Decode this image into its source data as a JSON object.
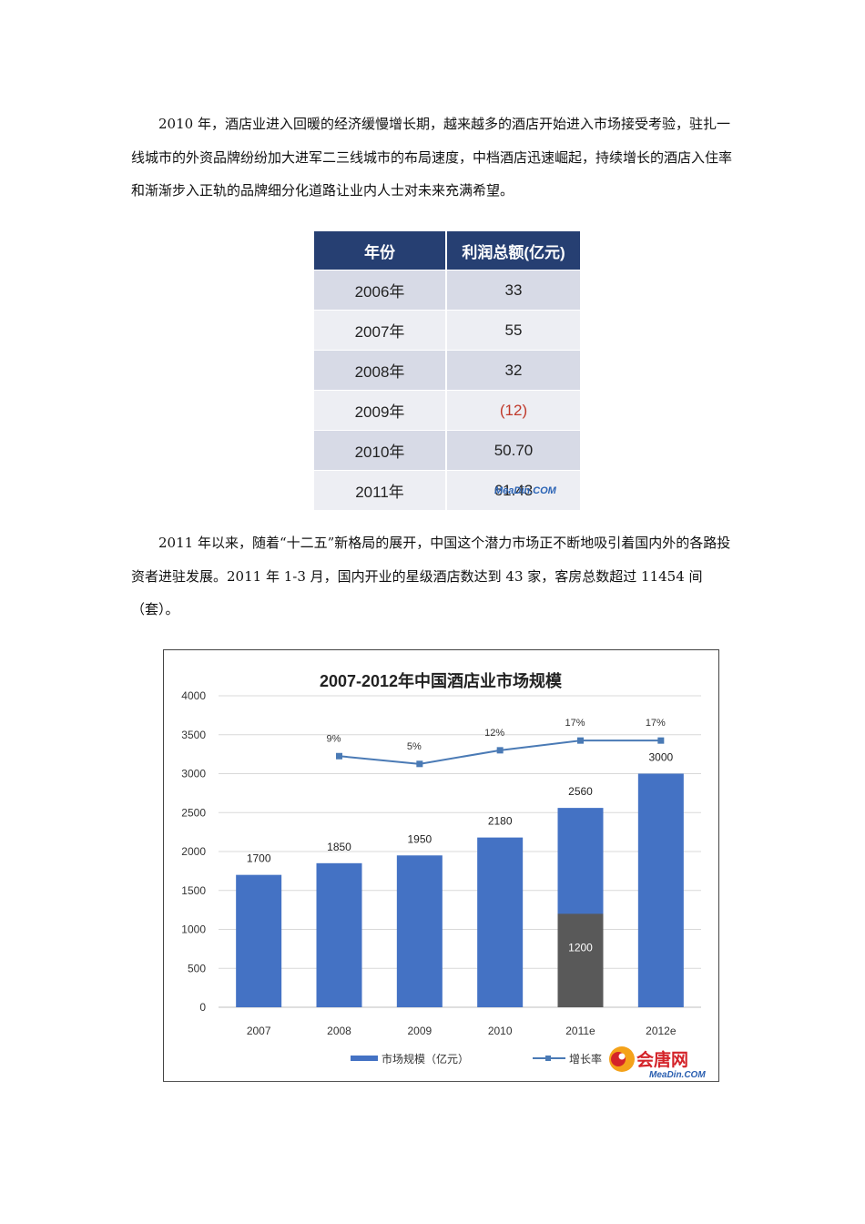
{
  "paragraphs": {
    "p1": "2010 年，酒店业进入回暖的经济缓慢增长期，越来越多的酒店开始进入市场接受考验，驻扎一线城市的外资品牌纷纷加大进军二三线城市的布局速度，中档酒店迅速崛起，持续增长的酒店入住率和渐渐步入正轨的品牌细分化道路让业内人士对未来充满希望。",
    "p2": "2011 年以来，随着“十二五”新格局的展开，中国这个潜力市场正不断地吸引着国内外的各路投资者进驻发展。2011 年 1-3 月，国内开业的星级酒店数达到 43 家，客房总数超过 11454 间（套）。"
  },
  "profit_table": {
    "headers": [
      "年份",
      "利润总额(亿元)"
    ],
    "rows": [
      [
        "2006年",
        "33"
      ],
      [
        "2007年",
        "55"
      ],
      [
        "2008年",
        "32"
      ],
      [
        "2009年",
        "(12)"
      ],
      [
        "2010年",
        "50.70"
      ],
      [
        "2011年",
        "61.43"
      ]
    ],
    "negative_color": "#c0392b",
    "watermark": "MeaDin.COM"
  },
  "chart_data": {
    "type": "bar",
    "title": "2007-2012年中国酒店业市场规模",
    "categories": [
      "2007",
      "2008",
      "2009",
      "2010",
      "2011e",
      "2012e"
    ],
    "ylim": [
      0,
      4000
    ],
    "yticks": [
      "0",
      "500",
      "1000",
      "1500",
      "2000",
      "2500",
      "3000",
      "3500",
      "4000"
    ],
    "series": [
      {
        "name": "市场规模（亿元）",
        "color": "#4472c4",
        "values": [
          1700,
          1850,
          1950,
          2180,
          2560,
          3000
        ],
        "labels": [
          "1700",
          "1850",
          "1950",
          "2180",
          "2560",
          "3000"
        ]
      },
      {
        "name": "",
        "color": "#595959",
        "values": [
          null,
          null,
          null,
          null,
          1200,
          null
        ],
        "labels": [
          "",
          "",
          "",
          "",
          "1200",
          ""
        ]
      }
    ],
    "line_series": {
      "name": "增长率",
      "color": "#4a7ab5",
      "categories": [
        "2008",
        "2009",
        "2010",
        "2011e",
        "2012e"
      ],
      "values": [
        9,
        5,
        12,
        17,
        17
      ],
      "labels": [
        "9%",
        "5%",
        "12%",
        "17%",
        "17%"
      ]
    },
    "legend_position": "bottom",
    "grid": true
  },
  "logo": {
    "cn": "会唐网",
    "en": "MeaDin.COM"
  }
}
